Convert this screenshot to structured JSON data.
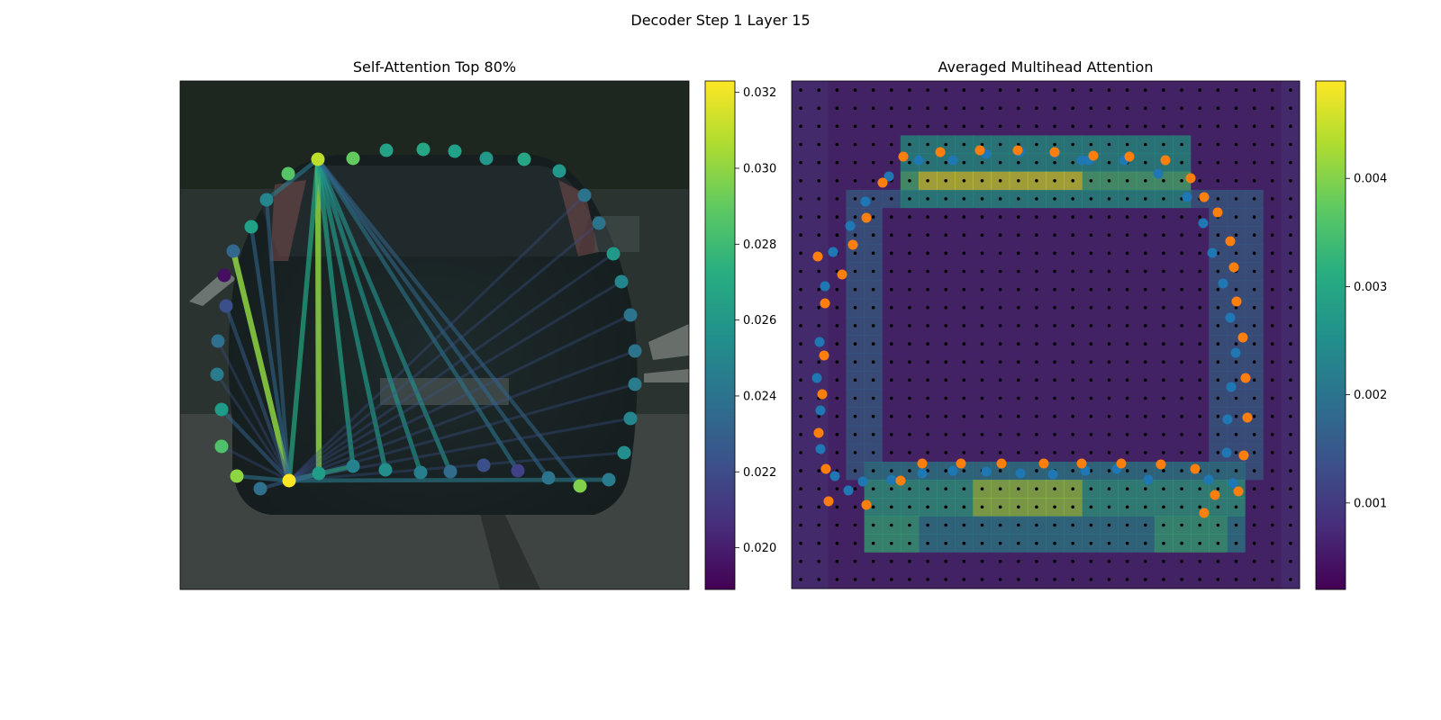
{
  "suptitle": "Decoder Step 1 Layer 15",
  "chart_data": [
    {
      "type": "scatter",
      "title": "Self-Attention Top 80%",
      "description_of_marks": "polygon points colored by attention weight with top connections drawn",
      "colormap": "viridis",
      "colorbar": {
        "min": 0.0189,
        "max": 0.0323,
        "ticks": [
          "0.020",
          "0.022",
          "0.024",
          "0.026",
          "0.028",
          "0.030",
          "0.032"
        ]
      },
      "points": [
        {
          "x": 259,
          "y": 279,
          "v": 0.0233
        },
        {
          "x": 249,
          "y": 306,
          "v": 0.0194
        },
        {
          "x": 251,
          "y": 340,
          "v": 0.0222
        },
        {
          "x": 242,
          "y": 379,
          "v": 0.0238
        },
        {
          "x": 241,
          "y": 416,
          "v": 0.0245
        },
        {
          "x": 246,
          "y": 455,
          "v": 0.0262
        },
        {
          "x": 246,
          "y": 496,
          "v": 0.0285
        },
        {
          "x": 263,
          "y": 529,
          "v": 0.03
        },
        {
          "x": 289,
          "y": 543,
          "v": 0.0238
        },
        {
          "x": 321,
          "y": 534,
          "v": 0.0323
        },
        {
          "x": 354,
          "y": 526,
          "v": 0.0263
        },
        {
          "x": 392,
          "y": 518,
          "v": 0.0248
        },
        {
          "x": 428,
          "y": 522,
          "v": 0.0255
        },
        {
          "x": 467,
          "y": 525,
          "v": 0.0247
        },
        {
          "x": 500,
          "y": 524,
          "v": 0.0236
        },
        {
          "x": 537,
          "y": 517,
          "v": 0.0222
        },
        {
          "x": 575,
          "y": 523,
          "v": 0.0215
        },
        {
          "x": 609,
          "y": 531,
          "v": 0.024
        },
        {
          "x": 644,
          "y": 540,
          "v": 0.0297
        },
        {
          "x": 676,
          "y": 533,
          "v": 0.0245
        },
        {
          "x": 693,
          "y": 503,
          "v": 0.0255
        },
        {
          "x": 700,
          "y": 465,
          "v": 0.025
        },
        {
          "x": 705,
          "y": 427,
          "v": 0.0245
        },
        {
          "x": 705,
          "y": 390,
          "v": 0.024
        },
        {
          "x": 700,
          "y": 350,
          "v": 0.024
        },
        {
          "x": 690,
          "y": 313,
          "v": 0.025
        },
        {
          "x": 681,
          "y": 282,
          "v": 0.026
        },
        {
          "x": 665,
          "y": 248,
          "v": 0.024
        },
        {
          "x": 649,
          "y": 217,
          "v": 0.024
        },
        {
          "x": 621,
          "y": 190,
          "v": 0.026
        },
        {
          "x": 582,
          "y": 177,
          "v": 0.0268
        },
        {
          "x": 540,
          "y": 176,
          "v": 0.026
        },
        {
          "x": 505,
          "y": 168,
          "v": 0.0265
        },
        {
          "x": 470,
          "y": 166,
          "v": 0.0268
        },
        {
          "x": 429,
          "y": 167,
          "v": 0.0266
        },
        {
          "x": 392,
          "y": 176,
          "v": 0.029
        },
        {
          "x": 353,
          "y": 177,
          "v": 0.031
        },
        {
          "x": 320,
          "y": 193,
          "v": 0.0287
        },
        {
          "x": 296,
          "y": 222,
          "v": 0.025
        },
        {
          "x": 279,
          "y": 252,
          "v": 0.0265
        }
      ],
      "edges": [
        {
          "from": 9,
          "to": 0,
          "v": 0.03
        },
        {
          "from": 36,
          "to": 10,
          "v": 0.03
        },
        {
          "from": 36,
          "to": 9,
          "v": 0.0268
        },
        {
          "from": 36,
          "to": 11,
          "v": 0.0265
        },
        {
          "from": 36,
          "to": 12,
          "v": 0.0262
        },
        {
          "from": 36,
          "to": 13,
          "v": 0.0258
        },
        {
          "from": 36,
          "to": 14,
          "v": 0.0256
        },
        {
          "from": 36,
          "to": 16,
          "v": 0.0242
        },
        {
          "from": 36,
          "to": 17,
          "v": 0.0235
        },
        {
          "from": 36,
          "to": 18,
          "v": 0.0232
        },
        {
          "from": 36,
          "to": 38,
          "v": 0.0245
        },
        {
          "from": 9,
          "to": 11,
          "v": 0.027
        },
        {
          "from": 9,
          "to": 19,
          "v": 0.0245
        },
        {
          "from": 9,
          "to": 5,
          "v": 0.023
        },
        {
          "from": 9,
          "to": 2,
          "v": 0.0228
        },
        {
          "from": 9,
          "to": 38,
          "v": 0.0232
        },
        {
          "from": 9,
          "to": 39,
          "v": 0.0235
        },
        {
          "from": 9,
          "to": 7,
          "v": 0.024
        },
        {
          "from": 9,
          "to": 8,
          "v": 0.0228
        }
      ]
    },
    {
      "type": "heatmap",
      "title": "Averaged Multihead Attention",
      "colormap": "viridis",
      "colorbar": {
        "min": 0.0002,
        "max": 0.0049,
        "ticks": [
          "0.001",
          "0.002",
          "0.003",
          "0.004"
        ]
      },
      "grid": {
        "cols": 28,
        "rows": 28
      },
      "series": [
        {
          "name": "blue",
          "color": "#1f77b4",
          "points": [
            [
              927,
              529
            ],
            [
              958,
              535
            ],
            [
              990,
              533
            ],
            [
              1024,
              526
            ],
            [
              1058,
              523
            ],
            [
              1095,
              524
            ],
            [
              1133,
              526
            ],
            [
              1169,
              527
            ],
            [
              1205,
              523
            ],
            [
              1240,
              521
            ],
            [
              1275,
              533
            ],
            [
              1342,
              533
            ],
            [
              1369,
              537
            ],
            [
              1362,
              503
            ],
            [
              1363,
              466
            ],
            [
              1367,
              430
            ],
            [
              1372,
              392
            ],
            [
              1366,
              353
            ],
            [
              1358,
              315
            ],
            [
              1346,
              281
            ],
            [
              1336,
              248
            ],
            [
              1318,
              219
            ],
            [
              1286,
              193
            ],
            [
              1248,
              178
            ],
            [
              1209,
              178
            ],
            [
              1171,
              170
            ],
            [
              1133,
              168
            ],
            [
              1095,
              171
            ],
            [
              1058,
              178
            ],
            [
              1020,
              178
            ],
            [
              987,
              196
            ],
            [
              961,
              224
            ],
            [
              944,
              251
            ],
            [
              925,
              280
            ],
            [
              916,
              318
            ],
            [
              910,
              380
            ],
            [
              907,
              420
            ],
            [
              911,
              456
            ],
            [
              911,
              499
            ],
            [
              942,
              545
            ],
            [
              1132,
              169
            ],
            [
              1201,
              178
            ]
          ]
        },
        {
          "name": "orange",
          "color": "#ff7f0e",
          "points": [
            [
              917,
              521
            ],
            [
              920,
              557
            ],
            [
              962,
              561
            ],
            [
              1000,
              534
            ],
            [
              1024,
              515
            ],
            [
              1067,
              515
            ],
            [
              1112,
              515
            ],
            [
              1159,
              515
            ],
            [
              1201,
              515
            ],
            [
              1245,
              515
            ],
            [
              1289,
              516
            ],
            [
              1327,
              521
            ],
            [
              1349,
              550
            ],
            [
              1337,
              570
            ],
            [
              1375,
              546
            ],
            [
              1381,
              506
            ],
            [
              1385,
              464
            ],
            [
              1383,
              420
            ],
            [
              1380,
              375
            ],
            [
              1373,
              335
            ],
            [
              1370,
              297
            ],
            [
              1366,
              268
            ],
            [
              1352,
              236
            ],
            [
              1337,
              219
            ],
            [
              1322,
              198
            ],
            [
              1294,
              178
            ],
            [
              1254,
              174
            ],
            [
              1214,
              173
            ],
            [
              1171,
              169
            ],
            [
              1130,
              167
            ],
            [
              1088,
              167
            ],
            [
              1044,
              169
            ],
            [
              1003,
              174
            ],
            [
              980,
              203
            ],
            [
              962,
              242
            ],
            [
              947,
              272
            ],
            [
              935,
              305
            ],
            [
              916,
              337
            ],
            [
              915,
              395
            ],
            [
              913,
              438
            ],
            [
              909,
              481
            ],
            [
              908,
              285
            ]
          ]
        }
      ]
    }
  ]
}
